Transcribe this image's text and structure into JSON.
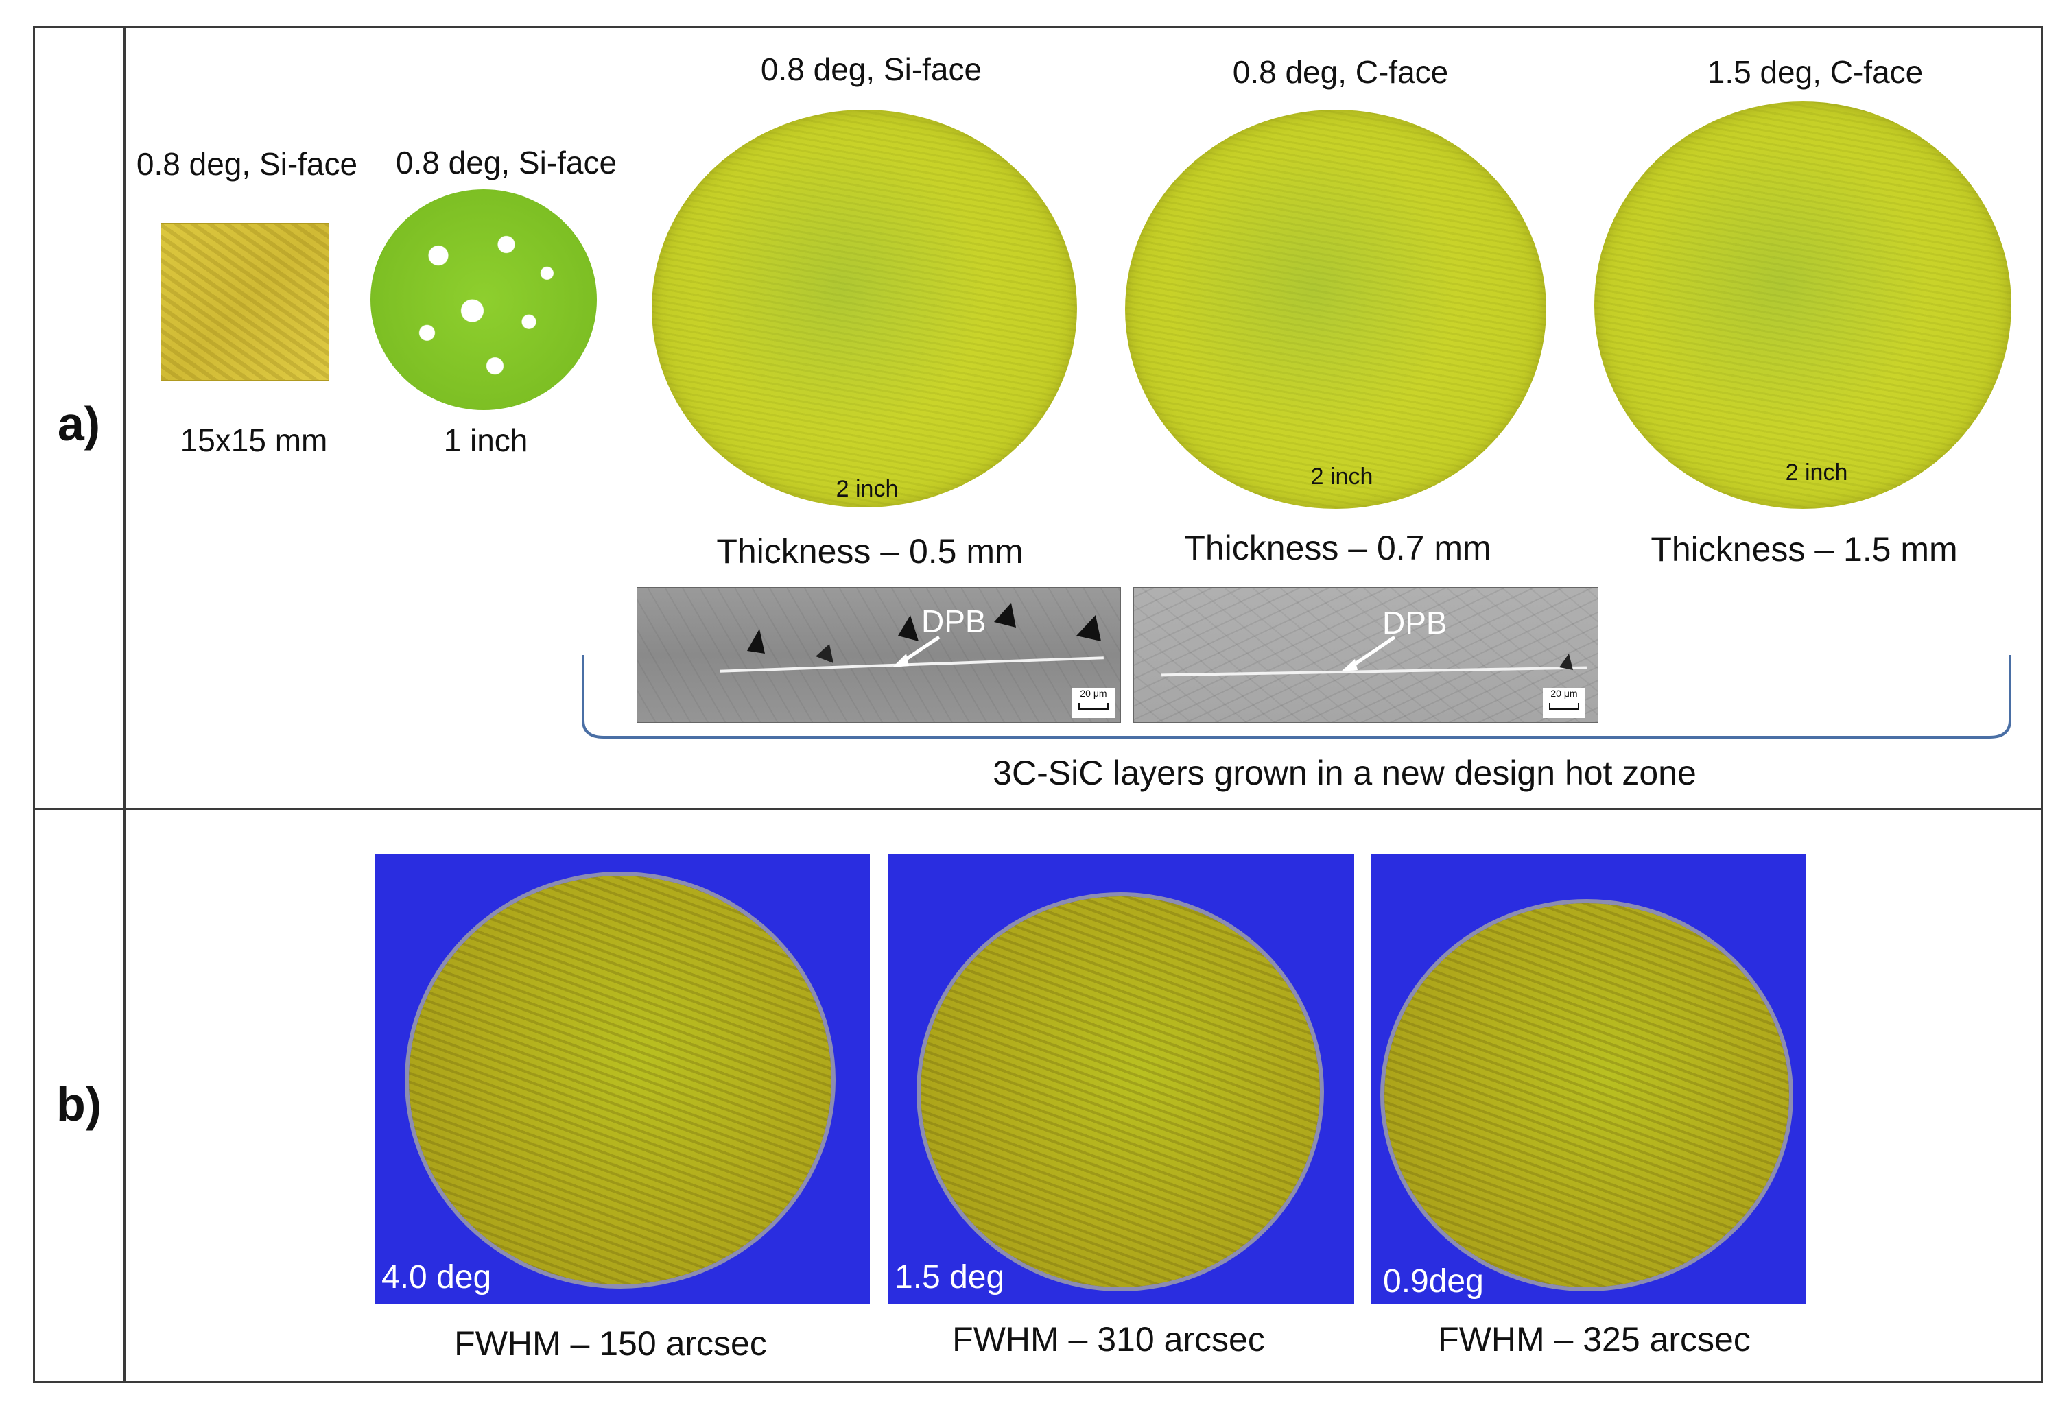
{
  "panel_a": {
    "row_label": "a)",
    "samples": [
      {
        "title": "0.8 deg, Si-face",
        "size": "15x15 mm"
      },
      {
        "title": "0.8 deg, Si-face",
        "size": "1 inch"
      },
      {
        "title": "0.8 deg, Si-face",
        "inner": "2 inch",
        "thickness": "Thickness – 0.5 mm"
      },
      {
        "title": "0.8 deg, C-face",
        "inner": "2 inch",
        "thickness": "Thickness – 0.7 mm"
      },
      {
        "title": "1.5 deg, C-face",
        "inner": "2 inch",
        "thickness": "Thickness – 1.5 mm"
      }
    ],
    "sem_images": [
      {
        "label": "DPB",
        "scale": "20 μm"
      },
      {
        "label": "DPB",
        "scale": "20 μm"
      }
    ],
    "bracket_caption": "3C-SiC layers grown in a new design hot zone"
  },
  "panel_b": {
    "row_label": "b)",
    "wafers": [
      {
        "angle": "4.0 deg",
        "fwhm": "FWHM – 150 arcsec"
      },
      {
        "angle": "1.5 deg",
        "fwhm": "FWHM – 310 arcsec"
      },
      {
        "angle": "0.9deg",
        "fwhm": "FWHM – 325 arcsec"
      }
    ]
  }
}
